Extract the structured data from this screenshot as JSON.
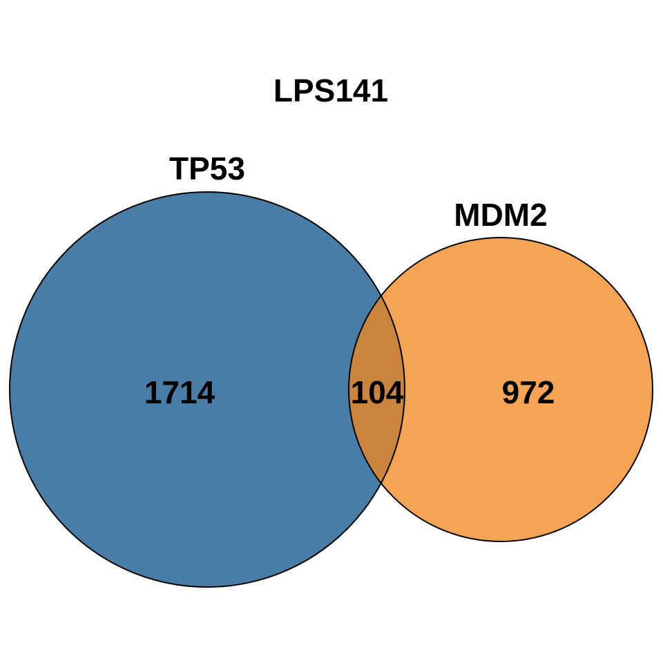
{
  "title": "LPS141",
  "sets": [
    {
      "name": "TP53",
      "color": "#4a7da6"
    },
    {
      "name": "MDM2",
      "color": "#f5a455"
    }
  ],
  "overlap_color": "#c9843f",
  "counts": {
    "tp53_only": "1714",
    "overlap": "104",
    "mdm2_only": "972"
  }
}
